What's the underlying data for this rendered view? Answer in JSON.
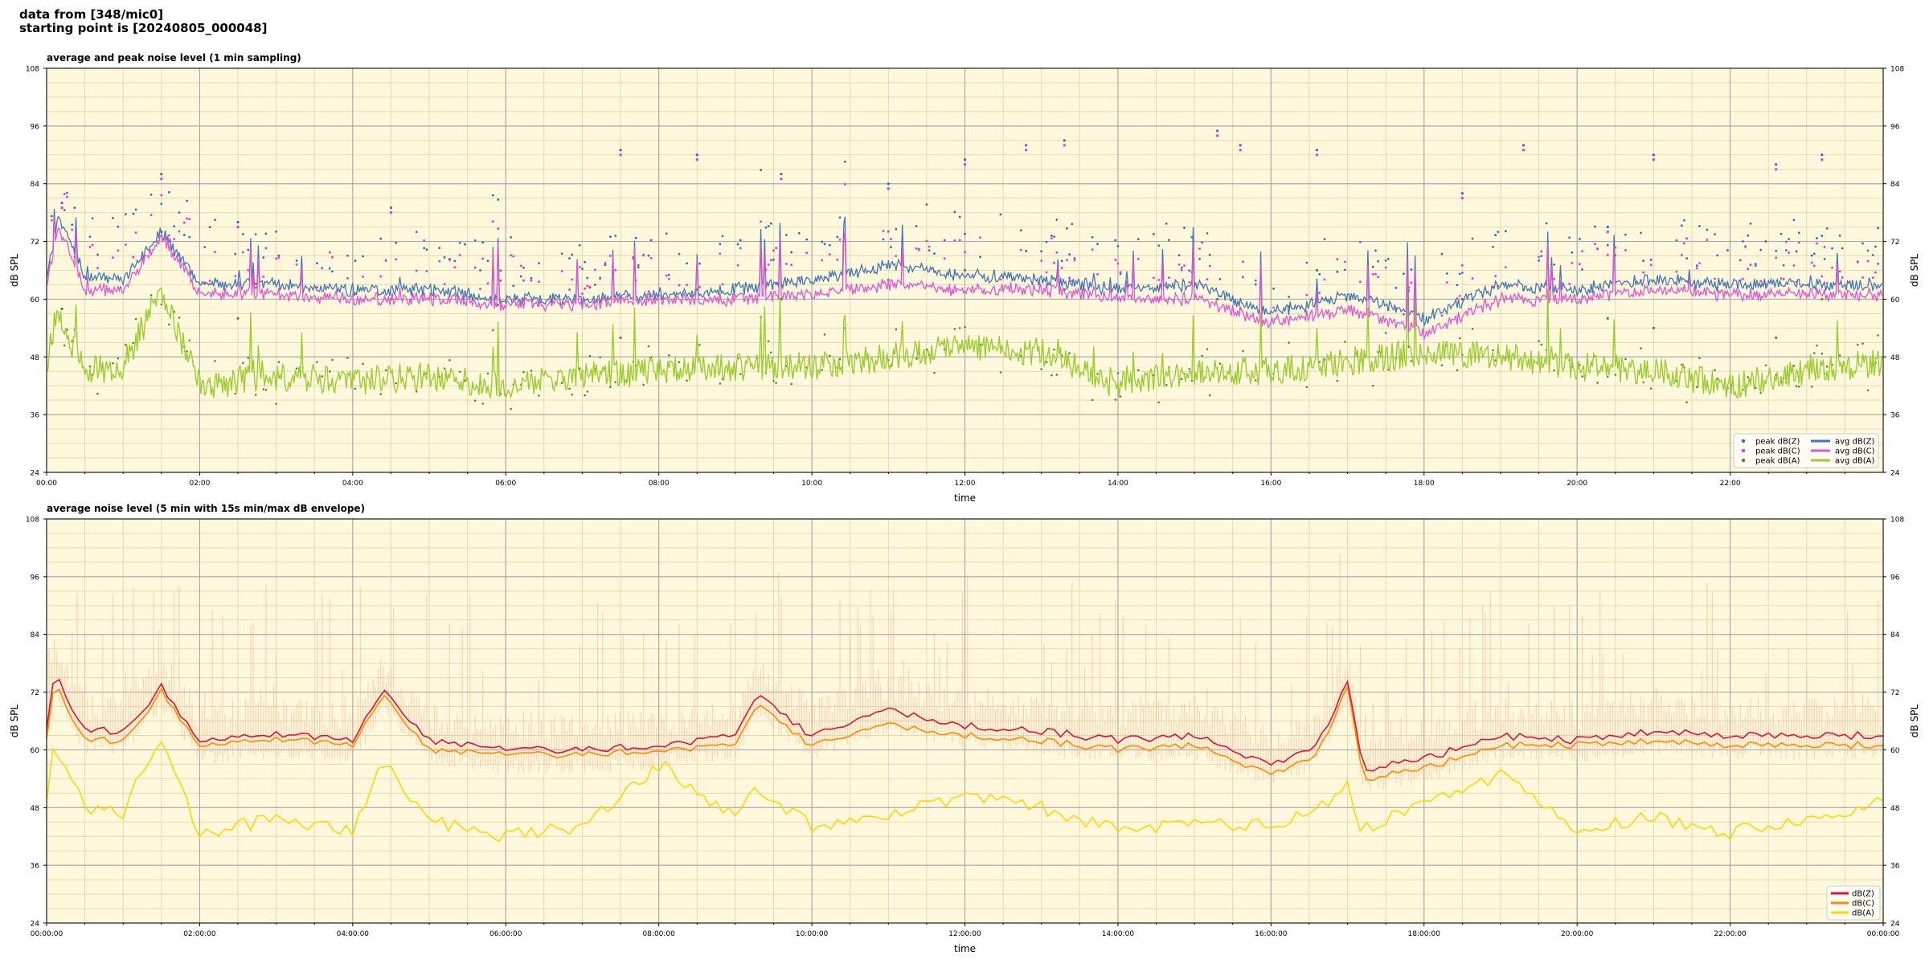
{
  "header": {
    "line1": "data from [348/mic0]",
    "line2": "starting point is [20240805_000048]"
  },
  "colors": {
    "plot_background": "#fff8dc",
    "grid_major": "#aaaaaa",
    "grid_minor": "#e6d9b0",
    "peak_z": "#1f77b4",
    "peak_c": "#e633d6",
    "peak_a": "#4a8c2a",
    "avg_z": "#3f78b4",
    "avg_c": "#e055d2",
    "avg_a": "#9acd32",
    "env_dbz": "#dc143c",
    "env_dbc": "#ff8c00",
    "env_dba": "#ffd700",
    "envelope_fill": "#f4a98a"
  },
  "chart_data": [
    {
      "type": "line",
      "title": "average and peak noise level (1 min sampling)",
      "xlabel": "time",
      "ylabel": "dB SPL",
      "ylim": [
        24,
        108
      ],
      "xlim_hours": [
        0,
        24
      ],
      "y_ticks": [
        "24",
        "36",
        "48",
        "60",
        "72",
        "84",
        "96",
        "108"
      ],
      "x_ticks": [
        "00:00",
        "02:00",
        "04:00",
        "06:00",
        "08:00",
        "10:00",
        "12:00",
        "14:00",
        "16:00",
        "18:00",
        "20:00",
        "22:00"
      ],
      "grid": true,
      "legend_position": "lower-right",
      "legend": [
        "peak dB(Z)",
        "peak dB(C)",
        "peak dB(A)",
        "avg dB(Z)",
        "avg dB(C)",
        "avg dB(A)"
      ],
      "series": [
        {
          "name": "avg dB(Z)",
          "x": [
            0,
            0.15,
            0.5,
            1.0,
            1.5,
            2.0,
            3.0,
            4.0,
            5.0,
            6.0,
            7.0,
            8.0,
            9.0,
            10.0,
            11.0,
            12.0,
            13.0,
            14.0,
            15.0,
            16.0,
            17.0,
            18.0,
            19.0,
            20.0,
            21.0,
            22.0,
            23.0,
            24.0
          ],
          "values": [
            64,
            77,
            65,
            64,
            74,
            63,
            63,
            62,
            62,
            60,
            60,
            61,
            62,
            64,
            67,
            65,
            64,
            62,
            63,
            57,
            61,
            56,
            63,
            62,
            64,
            63,
            63,
            63
          ]
        },
        {
          "name": "avg dB(C)",
          "x": [
            0,
            0.15,
            0.5,
            1.0,
            1.5,
            2.0,
            3.0,
            4.0,
            5.0,
            6.0,
            7.0,
            8.0,
            9.0,
            10.0,
            11.0,
            12.0,
            13.0,
            14.0,
            15.0,
            16.0,
            17.0,
            18.0,
            19.0,
            20.0,
            21.0,
            22.0,
            23.0,
            24.0
          ],
          "values": [
            62,
            75,
            62,
            62,
            73,
            61,
            61,
            60,
            60,
            59,
            59,
            60,
            60,
            61,
            63,
            62,
            62,
            60,
            60,
            55,
            58,
            53,
            60,
            60,
            62,
            61,
            61,
            61
          ]
        },
        {
          "name": "avg dB(A)",
          "x": [
            0,
            0.15,
            0.5,
            1.0,
            1.5,
            2.0,
            3.0,
            4.0,
            5.0,
            6.0,
            7.0,
            8.0,
            9.0,
            10.0,
            11.0,
            12.0,
            13.0,
            14.0,
            15.0,
            16.0,
            17.0,
            18.0,
            19.0,
            20.0,
            21.0,
            22.0,
            23.0,
            24.0
          ],
          "values": [
            47,
            56,
            45,
            46,
            62,
            42,
            44,
            43,
            44,
            42,
            44,
            45,
            46,
            46,
            48,
            50,
            49,
            42,
            45,
            45,
            47,
            49,
            48,
            46,
            45,
            42,
            45,
            47
          ]
        },
        {
          "name": "peak dB(Z)",
          "x": [
            0.2,
            1.5,
            2.5,
            4.5,
            7.5,
            8.5,
            9.6,
            11.0,
            12.0,
            12.8,
            13.3,
            15.3,
            15.6,
            16.6,
            18.5,
            19.3,
            20.4,
            21.0,
            22.6,
            23.2
          ],
          "values": [
            80,
            86,
            76,
            79,
            91,
            90,
            86,
            84,
            89,
            92,
            93,
            95,
            92,
            91,
            82,
            92,
            75,
            90,
            88,
            90
          ]
        },
        {
          "name": "peak dB(C)",
          "x": [
            0.2,
            1.5,
            2.5,
            4.5,
            7.5,
            8.5,
            9.6,
            11.0,
            12.0,
            12.8,
            13.3,
            15.3,
            15.6,
            16.6,
            18.5,
            19.3,
            20.4,
            21.0,
            22.6,
            23.2
          ],
          "values": [
            79,
            85,
            75,
            78,
            90,
            89,
            85,
            83,
            88,
            91,
            92,
            94,
            91,
            90,
            81,
            91,
            74,
            89,
            87,
            89
          ]
        },
        {
          "name": "peak dB(A)",
          "x": [
            0.2,
            1.5,
            2.5,
            4.5,
            7.5,
            8.5,
            9.6,
            11.0,
            12.0,
            12.8,
            13.3,
            15.3,
            15.6,
            16.6,
            18.5,
            19.3,
            20.4,
            21.0,
            22.6,
            23.2
          ],
          "values": [
            58,
            74,
            56,
            60,
            52,
            62,
            60,
            64,
            66,
            70,
            62,
            60,
            58,
            66,
            60,
            62,
            56,
            54,
            52,
            60
          ]
        }
      ]
    },
    {
      "type": "line",
      "title": "average noise level (5 min with 15s min/max dB envelope)",
      "xlabel": "time",
      "ylabel": "dB SPL",
      "ylim": [
        24,
        108
      ],
      "xlim_hours": [
        0,
        24
      ],
      "y_ticks": [
        "24",
        "36",
        "48",
        "60",
        "72",
        "84",
        "96",
        "108"
      ],
      "x_ticks": [
        "00:00:00",
        "02:00:00",
        "04:00:00",
        "06:00:00",
        "08:00:00",
        "10:00:00",
        "12:00:00",
        "14:00:00",
        "16:00:00",
        "18:00:00",
        "20:00:00",
        "22:00:00",
        "00:00:00"
      ],
      "grid": true,
      "legend_position": "lower-right",
      "legend": [
        "dB(Z)",
        "dB(C)",
        "dB(A)"
      ],
      "series": [
        {
          "name": "dB(Z)",
          "x": [
            0,
            0.1,
            0.5,
            1.0,
            1.5,
            2.0,
            3.0,
            4.0,
            4.4,
            5.0,
            6.0,
            7.0,
            8.0,
            9.0,
            9.3,
            10.0,
            11.0,
            12.0,
            13.0,
            14.0,
            15.0,
            16.0,
            16.6,
            17.0,
            17.2,
            18.0,
            19.0,
            20.0,
            21.0,
            22.0,
            23.0,
            24.0
          ],
          "values": [
            64,
            76,
            64,
            64,
            73,
            62,
            63,
            62,
            72,
            62,
            60,
            60,
            61,
            63,
            71,
            63,
            68,
            65,
            64,
            62,
            63,
            57,
            61,
            74,
            56,
            58,
            63,
            62,
            64,
            63,
            63,
            63
          ]
        },
        {
          "name": "dB(C)",
          "x": [
            0,
            0.1,
            0.5,
            1.0,
            1.5,
            2.0,
            3.0,
            4.0,
            4.4,
            5.0,
            6.0,
            7.0,
            8.0,
            9.0,
            9.3,
            10.0,
            11.0,
            12.0,
            13.0,
            14.0,
            15.0,
            16.0,
            16.6,
            17.0,
            17.2,
            18.0,
            19.0,
            20.0,
            21.0,
            22.0,
            23.0,
            24.0
          ],
          "values": [
            62,
            74,
            62,
            62,
            72,
            61,
            62,
            61,
            71,
            60,
            59,
            59,
            60,
            61,
            69,
            61,
            65,
            63,
            62,
            60,
            61,
            55,
            59,
            73,
            54,
            56,
            61,
            61,
            62,
            61,
            61,
            61
          ]
        },
        {
          "name": "dB(A)",
          "x": [
            0,
            0.1,
            0.5,
            1.0,
            1.5,
            2.0,
            3.0,
            4.0,
            4.4,
            5.0,
            6.0,
            7.0,
            8.0,
            9.0,
            9.3,
            10.0,
            11.0,
            12.0,
            13.0,
            14.0,
            15.0,
            16.0,
            16.6,
            17.0,
            17.2,
            18.0,
            19.0,
            20.0,
            21.0,
            22.0,
            23.0,
            24.0
          ],
          "values": [
            50,
            61,
            48,
            47,
            63,
            42,
            46,
            43,
            58,
            45,
            42,
            44,
            57,
            46,
            52,
            44,
            47,
            50,
            48,
            43,
            45,
            44,
            48,
            52,
            43,
            49,
            55,
            44,
            46,
            43,
            46,
            49
          ]
        }
      ]
    }
  ]
}
